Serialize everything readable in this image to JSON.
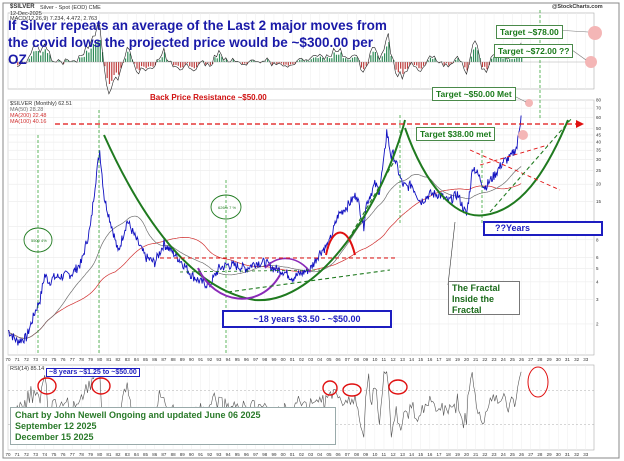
{
  "header": {
    "symbol": "$SILVER",
    "description": "Silver - Spot (EOD) CME",
    "date": "12-Dec-2025",
    "source": "@StockCharts.com",
    "macd_label": "MACD(12,26,9) 7.234, 4.472, 2.763",
    "price_label": "$SILVER (Monthly) 62.51",
    "ma_labels": [
      "MA(50) 28.28",
      "MA(200) 22.48",
      "MA(100) 40.16"
    ],
    "rsi_label": "RSI(14) 85.14"
  },
  "annotations": {
    "headline": "If Silver repeats an average of the Last 2 major moves from the covid lows the projected price would be ~$300.00 per OZ",
    "back_price_resistance": "Back Price Resistance ~$50.00",
    "target_78": "Target ~$78.00",
    "target_72": "Target ~$72.00 ??",
    "target_50": "Target ~$50.00 Met",
    "target_38": "Target $38.00 met",
    "years_18": "~18 years $3.50 - ~$50.00",
    "question_years": "??Years",
    "fractal": "The Fractal Inside the Fractal",
    "rsi_note": "~8 years ~$1.25 to ~$50.00",
    "pct_label_left": "5500 4%",
    "pct_label_mid": "626m 7 %",
    "credit_line1": "Chart by John Newell Ongoing and updated  June 06 2025",
    "credit_line2": "September 12 2025",
    "credit_line3": "December 15 2025"
  },
  "chart_data": {
    "type": "line",
    "title": "",
    "xlabel": "",
    "ylabel": "",
    "y_scale": "log",
    "ylim": [
      1.2,
      80
    ],
    "y_ticks": [
      80,
      70,
      60,
      50,
      45,
      40,
      35,
      30,
      25,
      20,
      15,
      10,
      8,
      6,
      5,
      4,
      3,
      2
    ],
    "x_ticks": [
      "70",
      "71",
      "72",
      "73",
      "74",
      "75",
      "76",
      "77",
      "78",
      "79",
      "80",
      "81",
      "82",
      "83",
      "84",
      "85",
      "86",
      "87",
      "88",
      "89",
      "90",
      "91",
      "92",
      "93",
      "94",
      "95",
      "96",
      "97",
      "98",
      "99",
      "00",
      "01",
      "02",
      "03",
      "04",
      "05",
      "06",
      "07",
      "08",
      "09",
      "10",
      "11",
      "12",
      "13",
      "14",
      "15",
      "16",
      "17",
      "18",
      "19",
      "20",
      "21",
      "22",
      "23",
      "24",
      "25",
      "26",
      "27",
      "28",
      "29",
      "30",
      "31",
      "32",
      "33"
    ],
    "series": [
      {
        "values_kind": "monthly close (approx.)",
        "x": [
          1970,
          1971,
          1972,
          1973,
          1973.5,
          1974,
          1974.5,
          1975,
          1976,
          1977,
          1978,
          1979,
          1979.5,
          1980,
          1980.5,
          1981,
          1981.5,
          1982,
          1983,
          1984,
          1985,
          1986,
          1987,
          1988,
          1989,
          1990,
          1991,
          1992,
          1993,
          1994,
          1995,
          1996,
          1997,
          1998,
          1999,
          2000,
          2001,
          2002,
          2003,
          2004,
          2005,
          2006,
          2007,
          2008,
          2008.8,
          2009,
          2010,
          2010.5,
          2011,
          2011.3,
          2011.8,
          2012,
          2013,
          2013.5,
          2014,
          2015,
          2016,
          2017,
          2018,
          2019,
          2020,
          2020.3,
          2020.7,
          2021,
          2022,
          2023,
          2024,
          2024.8,
          2025,
          2025.5,
          2025.95
        ],
        "values": [
          1.8,
          1.5,
          1.6,
          2.5,
          3.0,
          4.5,
          4.0,
          4.3,
          4.4,
          4.6,
          5.5,
          10.0,
          20.0,
          35.0,
          16.0,
          12.0,
          9.0,
          6.5,
          11.0,
          8.0,
          6.0,
          5.5,
          7.5,
          6.5,
          5.5,
          4.5,
          4.0,
          3.8,
          5.0,
          5.3,
          5.2,
          5.0,
          5.5,
          5.5,
          5.0,
          4.8,
          4.3,
          4.6,
          5.0,
          6.5,
          7.5,
          12.0,
          14.0,
          17.0,
          10.0,
          14.0,
          20.0,
          18.0,
          30.0,
          48.0,
          31.0,
          33.0,
          20.0,
          19.0,
          20.0,
          15.0,
          17.0,
          17.0,
          15.0,
          17.0,
          12.0,
          17.0,
          27.0,
          25.0,
          19.0,
          23.0,
          29.0,
          31.0,
          33.0,
          37.0,
          62.0
        ]
      }
    ],
    "indicators": [
      "MACD(12,26,9)",
      "RSI(14)",
      "MA(50)",
      "MA(200)",
      "MA(100)"
    ]
  },
  "colors": {
    "price": "#1010c0",
    "cup": "#1f7a1f",
    "resistance": "#e01010",
    "ma_red": "#d03030",
    "ma_grey": "#707070",
    "box_blue": "#1d1dc0"
  }
}
